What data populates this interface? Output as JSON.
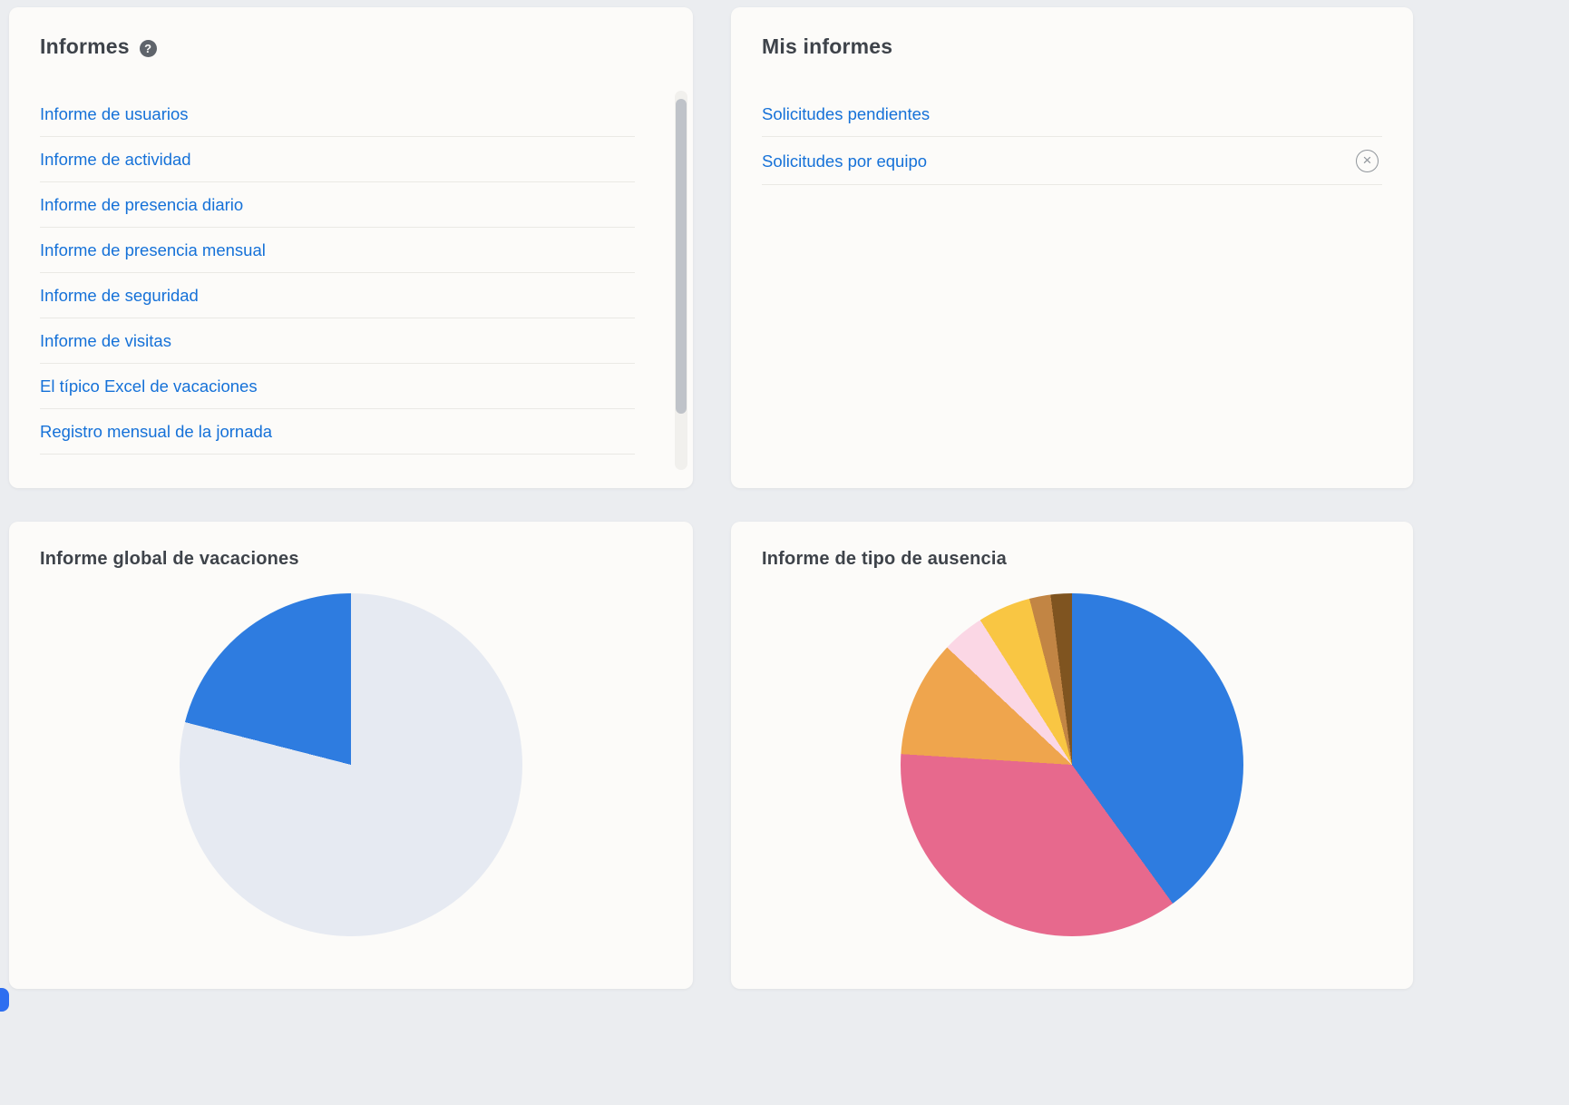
{
  "colors": {
    "page_background": "#ebedf0",
    "card_background": "#fcfbf9",
    "link_blue": "#1571d8",
    "heading_gray": "#3e434a"
  },
  "icons": {
    "help": "?",
    "remove": "×"
  },
  "informes": {
    "title": "Informes",
    "items": [
      "Informe de usuarios",
      "Informe de actividad",
      "Informe de presencia diario",
      "Informe de presencia mensual",
      "Informe de seguridad",
      "Informe de visitas",
      "El típico Excel de vacaciones",
      "Registro mensual de la jornada"
    ]
  },
  "mis_informes": {
    "title": "Mis informes",
    "items": [
      {
        "label": "Solicitudes pendientes",
        "removable": false
      },
      {
        "label": "Solicitudes por equipo",
        "removable": true
      }
    ]
  },
  "chart_data": [
    {
      "type": "pie",
      "title": "Informe global de vacaciones",
      "legend": "none",
      "start_angle": "top, clockwise",
      "slices": [
        {
          "value": 79,
          "color": "#e6eaf2"
        },
        {
          "value": 21,
          "color": "#2e7ce0"
        }
      ]
    },
    {
      "type": "pie",
      "title": "Informe de tipo de ausencia",
      "legend": "none",
      "start_angle": "top, clockwise",
      "slices": [
        {
          "value": 40,
          "color": "#2e7ce0"
        },
        {
          "value": 36,
          "color": "#e7698d"
        },
        {
          "value": 11,
          "color": "#efa54d"
        },
        {
          "value": 4,
          "color": "#fbd7e5"
        },
        {
          "value": 5,
          "color": "#f9c643"
        },
        {
          "value": 2,
          "color": "#c28544"
        },
        {
          "value": 2,
          "color": "#7f5420"
        }
      ]
    }
  ]
}
